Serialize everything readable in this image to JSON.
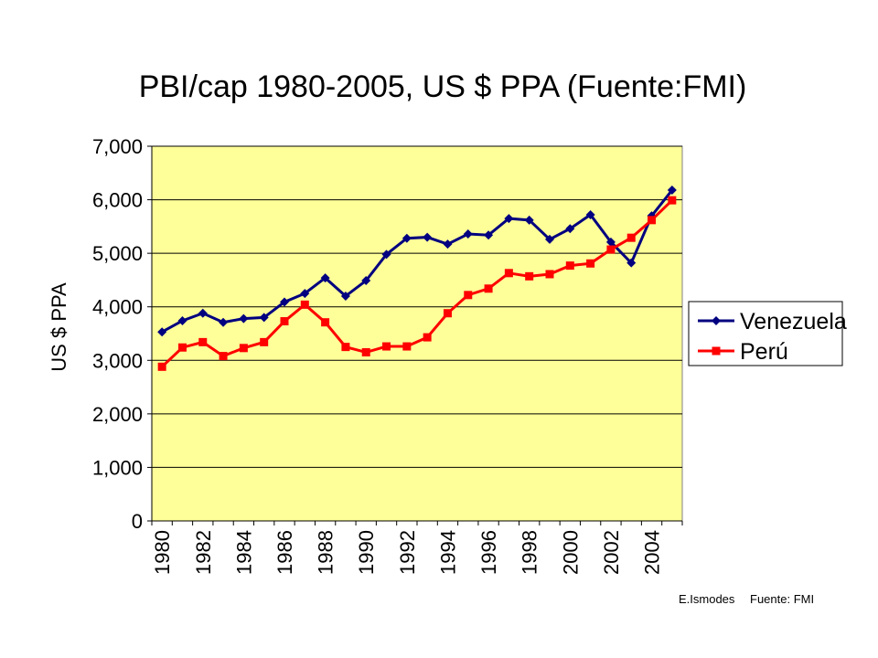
{
  "chart_data": {
    "type": "line",
    "title": "PBI/cap 1980-2005, US $ PPA (Fuente:FMI)",
    "ylabel": "US $ PPA",
    "xlabel": "",
    "ylim": [
      0,
      7000
    ],
    "yticks": [
      "0",
      "1,000",
      "2,000",
      "3,000",
      "4,000",
      "5,000",
      "6,000",
      "7,000"
    ],
    "x": [
      1980,
      1981,
      1982,
      1983,
      1984,
      1985,
      1986,
      1987,
      1988,
      1989,
      1990,
      1991,
      1992,
      1993,
      1994,
      1995,
      1996,
      1997,
      1998,
      1999,
      2000,
      2001,
      2002,
      2003,
      2004,
      2005
    ],
    "xtick_labels": [
      "1980",
      "1982",
      "1984",
      "1986",
      "1988",
      "1990",
      "1992",
      "1994",
      "1996",
      "1998",
      "2000",
      "2002",
      "2004"
    ],
    "series": [
      {
        "name": "Venezuela",
        "color": "#000080",
        "marker": "diamond",
        "values": [
          3530,
          3740,
          3880,
          3710,
          3780,
          3800,
          4090,
          4250,
          4540,
          4200,
          4490,
          4980,
          5280,
          5300,
          5170,
          5360,
          5340,
          5650,
          5620,
          5260,
          5460,
          5720,
          5210,
          4820,
          5700,
          6180
        ]
      },
      {
        "name": "Perú",
        "color": "#ff0000",
        "marker": "square",
        "values": [
          2880,
          3240,
          3340,
          3080,
          3230,
          3340,
          3730,
          4040,
          3710,
          3250,
          3150,
          3260,
          3260,
          3430,
          3880,
          4220,
          4340,
          4630,
          4570,
          4610,
          4770,
          4810,
          5070,
          5290,
          5620,
          5990
        ]
      }
    ],
    "grid": "horizontal",
    "legend": "right",
    "plot_background": "#ffff99",
    "credit": {
      "author": "E.Ismodes",
      "source": "Fuente: FMI"
    }
  }
}
